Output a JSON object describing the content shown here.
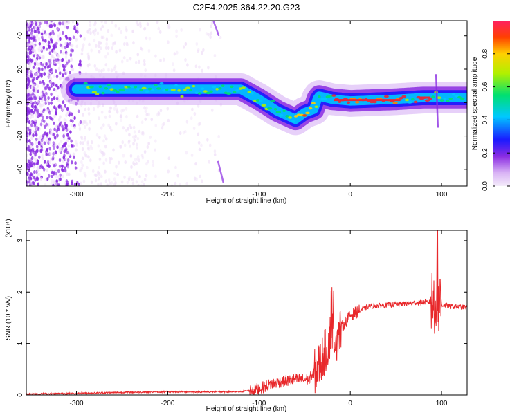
{
  "title": "C2E4.2025.364.22.20.G23",
  "chart_data": [
    {
      "type": "heatmap",
      "xlabel": "Height of straight line (km)",
      "ylabel": "Frequency (Hz)",
      "xlim": [
        -355,
        128
      ],
      "ylim": [
        -50,
        49
      ],
      "x_ticks": [
        -300,
        -200,
        -100,
        0,
        100
      ],
      "y_ticks": [
        -40,
        -20,
        0,
        20,
        40
      ],
      "grid": false,
      "colorbar": {
        "label": "Normalized spectral amplitude",
        "range": [
          0,
          1
        ],
        "ticks": [
          0.0,
          0.2,
          0.4,
          0.6,
          0.8
        ]
      },
      "ridge_frequency_hz": {
        "x": [
          -300,
          -250,
          -200,
          -150,
          -120,
          -100,
          -80,
          -60,
          -50,
          -40,
          -35,
          -20,
          0,
          50,
          80,
          100,
          128
        ],
        "y": [
          8,
          8,
          8,
          8,
          8,
          2,
          -5,
          -10,
          -6,
          -4,
          4,
          2,
          1,
          2,
          3,
          3,
          3
        ]
      },
      "colors": {
        "noise": "#7a1cf0",
        "ridge_core": "#e8283a",
        "colormap": [
          "#f0e0f8",
          "#8a2be2",
          "#1a1aff",
          "#00cfff",
          "#00e060",
          "#ffff00",
          "#ff8000",
          "#ff0040"
        ]
      }
    },
    {
      "type": "line",
      "xlabel": "Height of straight line (km)",
      "ylabel": "SNR (10 * v/v)",
      "y_multiplier": "(x10⁴)",
      "xlim": [
        -355,
        128
      ],
      "ylim": [
        0,
        3.2
      ],
      "x_ticks": [
        -300,
        -200,
        -100,
        0,
        100
      ],
      "y_ticks": [
        0,
        1,
        2,
        3
      ],
      "grid": false,
      "series": [
        {
          "color": "#e8282b",
          "x": [
            -355,
            -300,
            -250,
            -200,
            -150,
            -120,
            -100,
            -80,
            -60,
            -45,
            -35,
            -25,
            -20,
            -15,
            -10,
            0,
            20,
            50,
            80,
            90,
            95,
            100,
            110,
            128
          ],
          "y": [
            0.02,
            0.03,
            0.05,
            0.06,
            0.06,
            0.06,
            0.12,
            0.25,
            0.3,
            0.3,
            0.55,
            0.95,
            1.3,
            1.1,
            1.3,
            1.55,
            1.72,
            1.76,
            1.8,
            1.8,
            1.9,
            1.75,
            1.72,
            1.7
          ]
        }
      ]
    }
  ]
}
